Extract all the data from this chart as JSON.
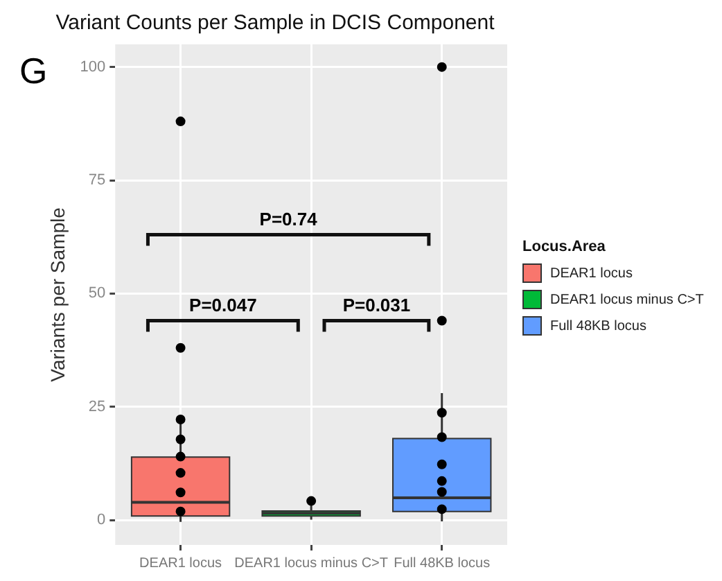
{
  "chart_data": {
    "type": "box",
    "title": "Variant Counts per Sample in DCIS Component",
    "ylabel": "Variants per Sample",
    "legend_title": "Locus.Area",
    "legend": "right",
    "grid": true,
    "categories": [
      "DEAR1 locus",
      "DEAR1 locus minus C>T",
      "Full 48KB locus"
    ],
    "series": [
      {
        "type": "box",
        "name": "DEAR1 locus",
        "color": "#f8766d",
        "boxes": [
          {
            "low": -0.4,
            "q1": 0.9,
            "median": 3.9,
            "q3": 13.9,
            "high": 22,
            "outliers": [
              38,
              88
            ]
          },
          null,
          null
        ]
      },
      {
        "type": "box",
        "name": "DEAR1 locus minus C>T",
        "color": "#00ba38",
        "boxes": [
          null,
          {
            "low": 0.1,
            "q1": 0.9,
            "median": 1.5,
            "q3": 2,
            "high": 4.2
          },
          null
        ]
      },
      {
        "type": "box",
        "name": "Full 48KB locus",
        "color": "#619cff",
        "boxes": [
          null,
          null,
          {
            "low": -0.3,
            "q1": 1.9,
            "median": 4.9,
            "q3": 18,
            "high": 28,
            "outliers": [
              44,
              100
            ]
          }
        ]
      },
      {
        "type": "scatter",
        "color": "#000000",
        "x": [
          "DEAR1 locus",
          "DEAR1 locus",
          "DEAR1 locus",
          "DEAR1 locus",
          "DEAR1 locus",
          "DEAR1 locus",
          "DEAR1 locus minus C>T",
          "Full 48KB locus",
          "Full 48KB locus",
          "Full 48KB locus",
          "Full 48KB locus",
          "Full 48KB locus",
          "Full 48KB locus"
        ],
        "values": [
          17.8,
          14,
          22.2,
          10.4,
          6.1,
          1.9,
          4.2,
          23.7,
          18.3,
          12.3,
          8.6,
          6.2,
          2.4
        ]
      }
    ],
    "ylim": [
      -5.5,
      105
    ],
    "yticks": [
      0,
      25,
      50,
      75,
      100
    ],
    "marker": "circle",
    "annotations": [
      "G",
      "P=0.047",
      "P=0.74",
      "P=0.031"
    ]
  }
}
